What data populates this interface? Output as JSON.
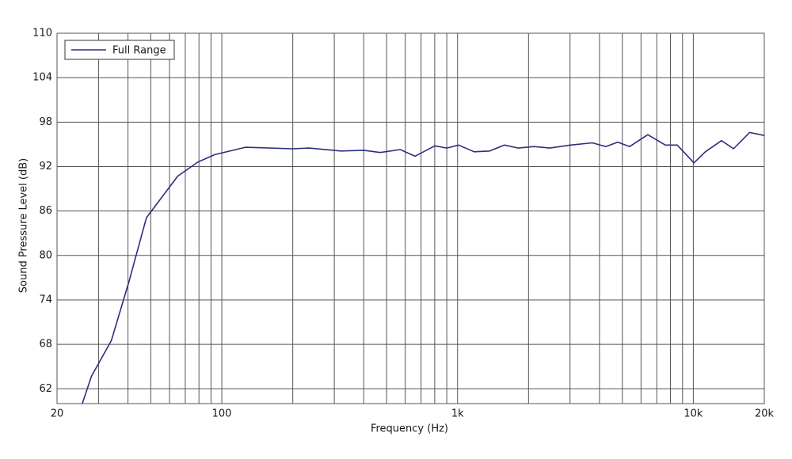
{
  "chart_data": {
    "type": "line",
    "xlabel": "Frequency (Hz)",
    "ylabel": "Sound Pressure Level (dB)",
    "log_x": true,
    "grid": true,
    "legend": "upper left",
    "x": [
      25.6,
      28,
      34,
      40.4,
      47.9,
      53.7,
      65,
      79,
      93,
      126,
      200,
      234,
      320,
      400,
      470,
      571,
      660,
      801,
      901,
      1010,
      1176,
      1370,
      1580,
      1810,
      2110,
      2460,
      3010,
      3730,
      4250,
      4780,
      5370,
      6410,
      7610,
      8550,
      10060,
      11250,
      13170,
      14820,
      17320,
      20000
    ],
    "series": [
      {
        "name": "Full Range",
        "color": "#2b2f7e",
        "values": [
          60,
          63.7,
          68.5,
          76.5,
          85.1,
          87.2,
          90.7,
          92.6,
          93.6,
          94.6,
          94.4,
          94.5,
          94.1,
          94.2,
          93.9,
          94.3,
          93.4,
          94.8,
          94.5,
          94.9,
          94.0,
          94.1,
          94.9,
          94.5,
          94.7,
          94.5,
          94.9,
          95.2,
          94.7,
          95.3,
          94.7,
          96.3,
          94.9,
          94.9,
          92.5,
          94.0,
          95.5,
          94.4,
          96.6,
          96.2
        ]
      }
    ],
    "xlim": [
      20,
      20000
    ],
    "xticks": [
      20,
      {
        "value": 30,
        "label": null
      },
      {
        "value": 40,
        "label": null
      },
      {
        "value": 50,
        "label": null
      },
      {
        "value": 60,
        "label": null
      },
      {
        "value": 70,
        "label": null
      },
      {
        "value": 80,
        "label": null
      },
      {
        "value": 90,
        "label": null
      },
      100,
      {
        "value": 200,
        "label": null
      },
      {
        "value": 300,
        "label": null
      },
      {
        "value": 400,
        "label": null
      },
      {
        "value": 500,
        "label": null
      },
      {
        "value": 600,
        "label": null
      },
      {
        "value": 700,
        "label": null
      },
      {
        "value": 800,
        "label": null
      },
      {
        "value": 900,
        "label": null
      },
      {
        "value": 1000,
        "label": "1k"
      },
      {
        "value": 2000,
        "label": null
      },
      {
        "value": 3000,
        "label": null
      },
      {
        "value": 4000,
        "label": null
      },
      {
        "value": 5000,
        "label": null
      },
      {
        "value": 6000,
        "label": null
      },
      {
        "value": 7000,
        "label": null
      },
      {
        "value": 8000,
        "label": null
      },
      {
        "value": 9000,
        "label": null
      },
      {
        "value": 10000,
        "label": "10k"
      },
      {
        "value": 20000,
        "label": "20k"
      }
    ],
    "ylim": [
      60,
      110
    ],
    "yticks": [
      62,
      68,
      74,
      80,
      86,
      92,
      98,
      104,
      110
    ]
  }
}
